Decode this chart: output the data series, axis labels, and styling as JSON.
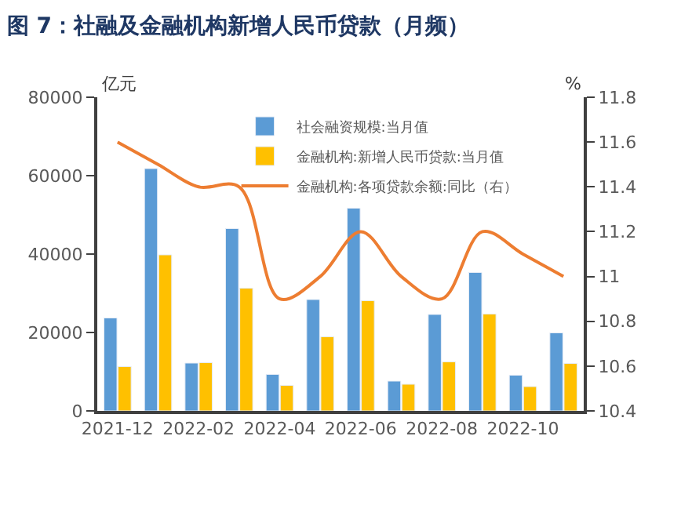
{
  "chart_data": {
    "type": "bar",
    "title": "图 7：社融及金融机构新增人民币贷款（月频）",
    "ylabel": "亿元",
    "y2label": "%",
    "categories": [
      "2021-12",
      null,
      "2022-02",
      null,
      "2022-04",
      null,
      "2022-06",
      null,
      "2022-08",
      null,
      "2022-10",
      null
    ],
    "series": [
      {
        "name": "社会融资规模:当月值",
        "color": "#5b9bd5",
        "values": [
          23700,
          61800,
          12200,
          46500,
          9300,
          28400,
          51700,
          7600,
          24600,
          35300,
          9100,
          19900
        ]
      },
      {
        "name": "金融机构:新增人民币贷款:当月值",
        "color": "#ffc000",
        "values": [
          11300,
          39800,
          12300,
          31300,
          6500,
          18900,
          28100,
          6800,
          12500,
          24700,
          6200,
          12100
        ]
      },
      {
        "name": "金融机构:各项贷款余额:同比（右）",
        "type": "line",
        "axis": "y2",
        "color": "#ed7d31",
        "values": [
          11.6,
          11.5,
          11.4,
          11.4,
          10.9,
          11.0,
          11.2,
          11.0,
          10.9,
          11.2,
          11.1,
          11.0
        ]
      }
    ],
    "ylim": [
      0,
      80000
    ],
    "yticks": [
      0,
      20000,
      40000,
      60000,
      80000
    ],
    "y2lim": [
      10.4,
      11.8
    ],
    "y2ticks": [
      10.4,
      10.6,
      10.8,
      11,
      11.2,
      11.4,
      11.6,
      11.8
    ],
    "legend": "top"
  }
}
